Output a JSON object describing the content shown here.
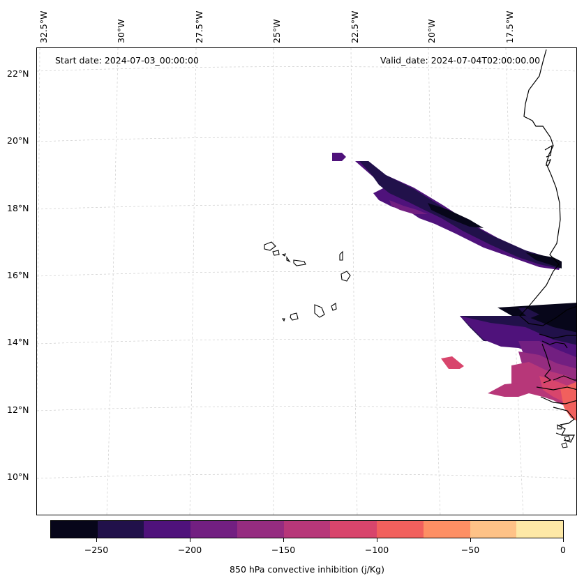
{
  "header": {
    "start_date": "Start date: 2024-07-03_00:00:00",
    "valid_date": "Valid_date: 2024-07-04T02:00:00.00"
  },
  "map": {
    "longitude_labels": [
      "32.5°W",
      "30°W",
      "27.5°W",
      "25°W",
      "22.5°W",
      "20°W",
      "17.5°W"
    ],
    "latitude_labels": [
      "22°N",
      "20°N",
      "18°N",
      "16°N",
      "14°N",
      "12°N",
      "10°N"
    ],
    "gridlines": "dashed light gray",
    "coastline_color": "#000000"
  },
  "colorbar": {
    "title": "850 hPa convective inhibition (j/Kg)",
    "tick_labels": [
      "−250",
      "−200",
      "−150",
      "−100",
      "−50",
      "0"
    ],
    "levels": [
      -275,
      -250,
      -225,
      -200,
      -175,
      -150,
      -125,
      -100,
      -75,
      -50,
      -25,
      0
    ],
    "colors": [
      "#07061a",
      "#21114a",
      "#4f127b",
      "#721f81",
      "#952c80",
      "#b73779",
      "#d8456c",
      "#f1605d",
      "#fd8f64",
      "#fec287",
      "#fde8a6"
    ]
  }
}
